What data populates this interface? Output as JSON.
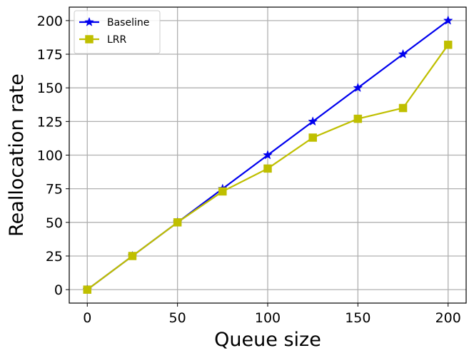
{
  "chart_data": {
    "type": "line",
    "title": "",
    "xlabel": "Queue size",
    "ylabel": "Reallocation rate",
    "xlim": [
      -10,
      210
    ],
    "ylim": [
      -10,
      210
    ],
    "xticks": [
      0,
      50,
      100,
      150,
      200
    ],
    "yticks": [
      0,
      25,
      50,
      75,
      100,
      125,
      150,
      175,
      200
    ],
    "grid": true,
    "legend_position": "top-left",
    "x": [
      0,
      25,
      50,
      75,
      100,
      125,
      150,
      175,
      200
    ],
    "series": [
      {
        "name": "Baseline",
        "color": "#0000ee",
        "marker": "star",
        "values": [
          0,
          25,
          50,
          75,
          100,
          125,
          150,
          175,
          200
        ]
      },
      {
        "name": "LRR",
        "color": "#bfbf00",
        "marker": "square",
        "values": [
          0,
          25,
          50,
          73,
          90,
          113,
          127,
          135,
          182
        ]
      }
    ]
  }
}
